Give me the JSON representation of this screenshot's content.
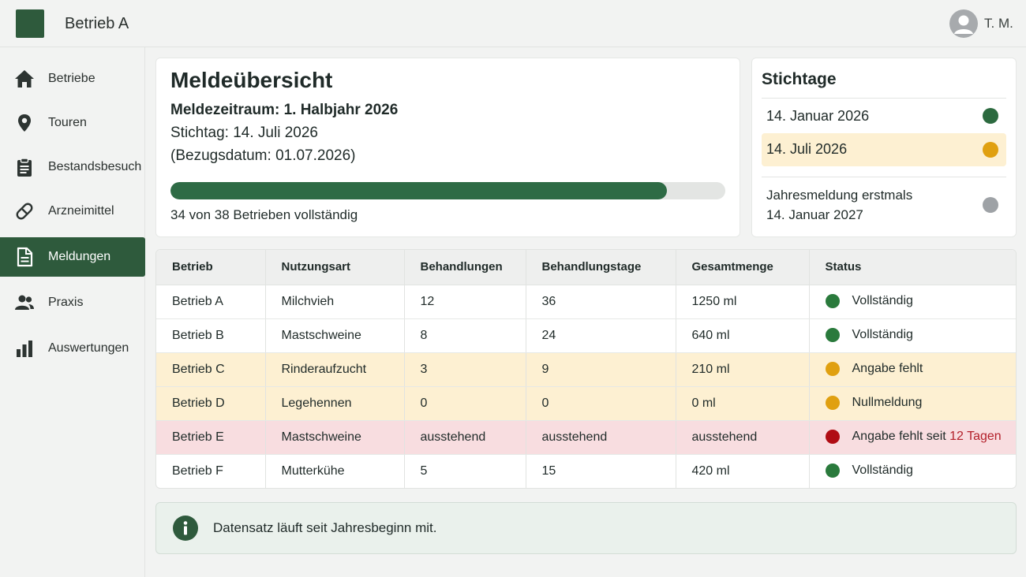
{
  "header": {
    "title": "Betrieb A",
    "user": "T. M."
  },
  "sidebar": {
    "items": [
      {
        "label": "Betriebe",
        "icon": "home-icon"
      },
      {
        "label": "Touren",
        "icon": "location-pin-icon"
      },
      {
        "label": "Bestandsbesuch",
        "icon": "clipboard-icon"
      },
      {
        "label": "Arzneimittel",
        "icon": "pill-icon"
      },
      {
        "label": "Meldungen",
        "icon": "document-icon",
        "active": true
      },
      {
        "label": "Praxis",
        "icon": "people-icon"
      },
      {
        "label": "Auswertungen",
        "icon": "bar-chart-icon"
      }
    ]
  },
  "overview": {
    "title": "Meldeübersicht",
    "period": "Meldezeitraum: 1. Halbjahr 2026",
    "stichtag": "Stichtag: 14. Juli 2026",
    "bezug": "(Bezugsdatum: 01.07.2026)",
    "progress_fraction": 0.895,
    "progress_text": "34 von 38 Betrieben vollständig"
  },
  "stichtage": {
    "title": "Stichtage",
    "items": [
      {
        "line1": "14. Januar 2026",
        "line2": "",
        "status": "done"
      },
      {
        "line1": "14. Juli 2026",
        "line2": "",
        "status": "current"
      },
      {
        "line1": "Jahresmeldung erstmals",
        "line2": "14. Januar 2027",
        "status": "upcoming"
      }
    ]
  },
  "table": {
    "columns": [
      "Betrieb",
      "Nutzungsart",
      "Behandlungen",
      "Behandlungstage",
      "Gesamtmenge",
      "Status"
    ],
    "rows": [
      {
        "betrieb": "Betrieb A",
        "nutzungsart": "Milchvieh",
        "behandlungen": "12",
        "tage": "36",
        "menge": "1250 ml",
        "status": "Vollständig",
        "status_extra": "",
        "level": "ok"
      },
      {
        "betrieb": "Betrieb B",
        "nutzungsart": "Mastschweine",
        "behandlungen": "8",
        "tage": "24",
        "menge": "640 ml",
        "status": "Vollständig",
        "status_extra": "",
        "level": "ok"
      },
      {
        "betrieb": "Betrieb C",
        "nutzungsart": "Rinderaufzucht",
        "behandlungen": "3",
        "tage": "9",
        "menge": "210 ml",
        "status": "Angabe fehlt",
        "status_extra": "",
        "level": "warn"
      },
      {
        "betrieb": "Betrieb D",
        "nutzungsart": "Legehennen",
        "behandlungen": "0",
        "tage": "0",
        "menge": "0 ml",
        "status": "Nullmeldung",
        "status_extra": "",
        "level": "warn"
      },
      {
        "betrieb": "Betrieb E",
        "nutzungsart": "Mastschweine",
        "behandlungen": "ausstehend",
        "tage": "ausstehend",
        "menge": "ausstehend",
        "status": "Angabe fehlt seit ",
        "status_extra": "12 Tagen",
        "level": "error"
      },
      {
        "betrieb": "Betrieb F",
        "nutzungsart": "Mutterkühe",
        "behandlungen": "5",
        "tage": "15",
        "menge": "420 ml",
        "status": "Vollständig",
        "status_extra": "",
        "level": "ok"
      }
    ]
  },
  "info": {
    "icon": "info-icon",
    "text": "Datensatz läuft seit Jahresbeginn mit."
  },
  "colors": {
    "brand": "#2e5a3c",
    "ok": "#2a7a3c",
    "warn": "#e0a010",
    "error": "#b00d14",
    "upcoming": "#9ea2a6",
    "warn_row": "#fdf0d2",
    "error_row": "#f8dde0"
  }
}
